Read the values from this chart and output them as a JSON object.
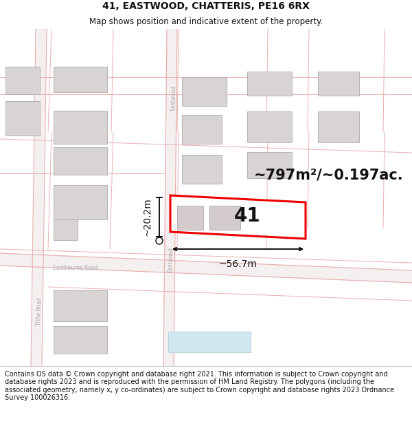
{
  "title": "41, EASTWOOD, CHATTERIS, PE16 6RX",
  "subtitle": "Map shows position and indicative extent of the property.",
  "footer": "Contains OS data © Crown copyright and database right 2021. This information is subject to Crown copyright and database rights 2023 and is reproduced with the permission of HM Land Registry. The polygons (including the associated geometry, namely x, y co-ordinates) are subject to Crown copyright and database rights 2023 Ordnance Survey 100026316.",
  "area_text": "~797m²/~0.197ac.",
  "label_41": "41",
  "width_label": "~56.7m",
  "height_label": "~20.2m",
  "map_bg": "#f7f3f3",
  "property_outline_color": "#ee0000",
  "building_fill": "#d8d4d4",
  "building_edge": "#b0a8a8",
  "plot_fill": "#f0e8e8",
  "road_edge_color": "#e8b0b0",
  "road_fill": "#f5f0f0",
  "dim_color": "#111111",
  "text_color": "#111111",
  "street_label_color": "#aaaaaa",
  "title_fontsize": 10,
  "subtitle_fontsize": 8.5,
  "footer_fontsize": 7,
  "area_fontsize": 15,
  "label_fontsize": 20,
  "dim_fontsize": 10
}
